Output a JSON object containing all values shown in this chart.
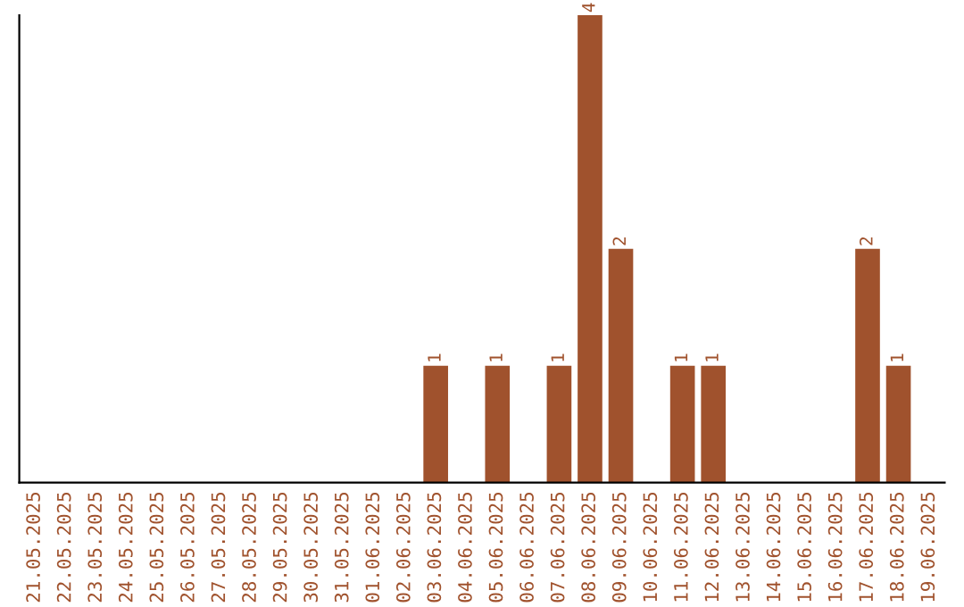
{
  "chart_data": {
    "type": "bar",
    "categories": [
      "21.05.2025",
      "22.05.2025",
      "23.05.2025",
      "24.05.2025",
      "25.05.2025",
      "26.05.2025",
      "27.05.2025",
      "28.05.2025",
      "29.05.2025",
      "30.05.2025",
      "31.05.2025",
      "01.06.2025",
      "02.06.2025",
      "03.06.2025",
      "04.06.2025",
      "05.06.2025",
      "06.06.2025",
      "07.06.2025",
      "08.06.2025",
      "09.06.2025",
      "10.06.2025",
      "11.06.2025",
      "12.06.2025",
      "13.06.2025",
      "14.06.2025",
      "15.06.2025",
      "16.06.2025",
      "17.06.2025",
      "18.06.2025",
      "19.06.2025"
    ],
    "values": [
      null,
      null,
      null,
      null,
      null,
      null,
      null,
      null,
      null,
      null,
      null,
      null,
      null,
      1,
      null,
      1,
      null,
      1,
      4,
      2,
      null,
      1,
      1,
      null,
      null,
      null,
      null,
      2,
      1,
      null
    ],
    "data_labels": true,
    "color": "#a0522d",
    "tick_labels": "x",
    "grid": false,
    "legend": false
  }
}
